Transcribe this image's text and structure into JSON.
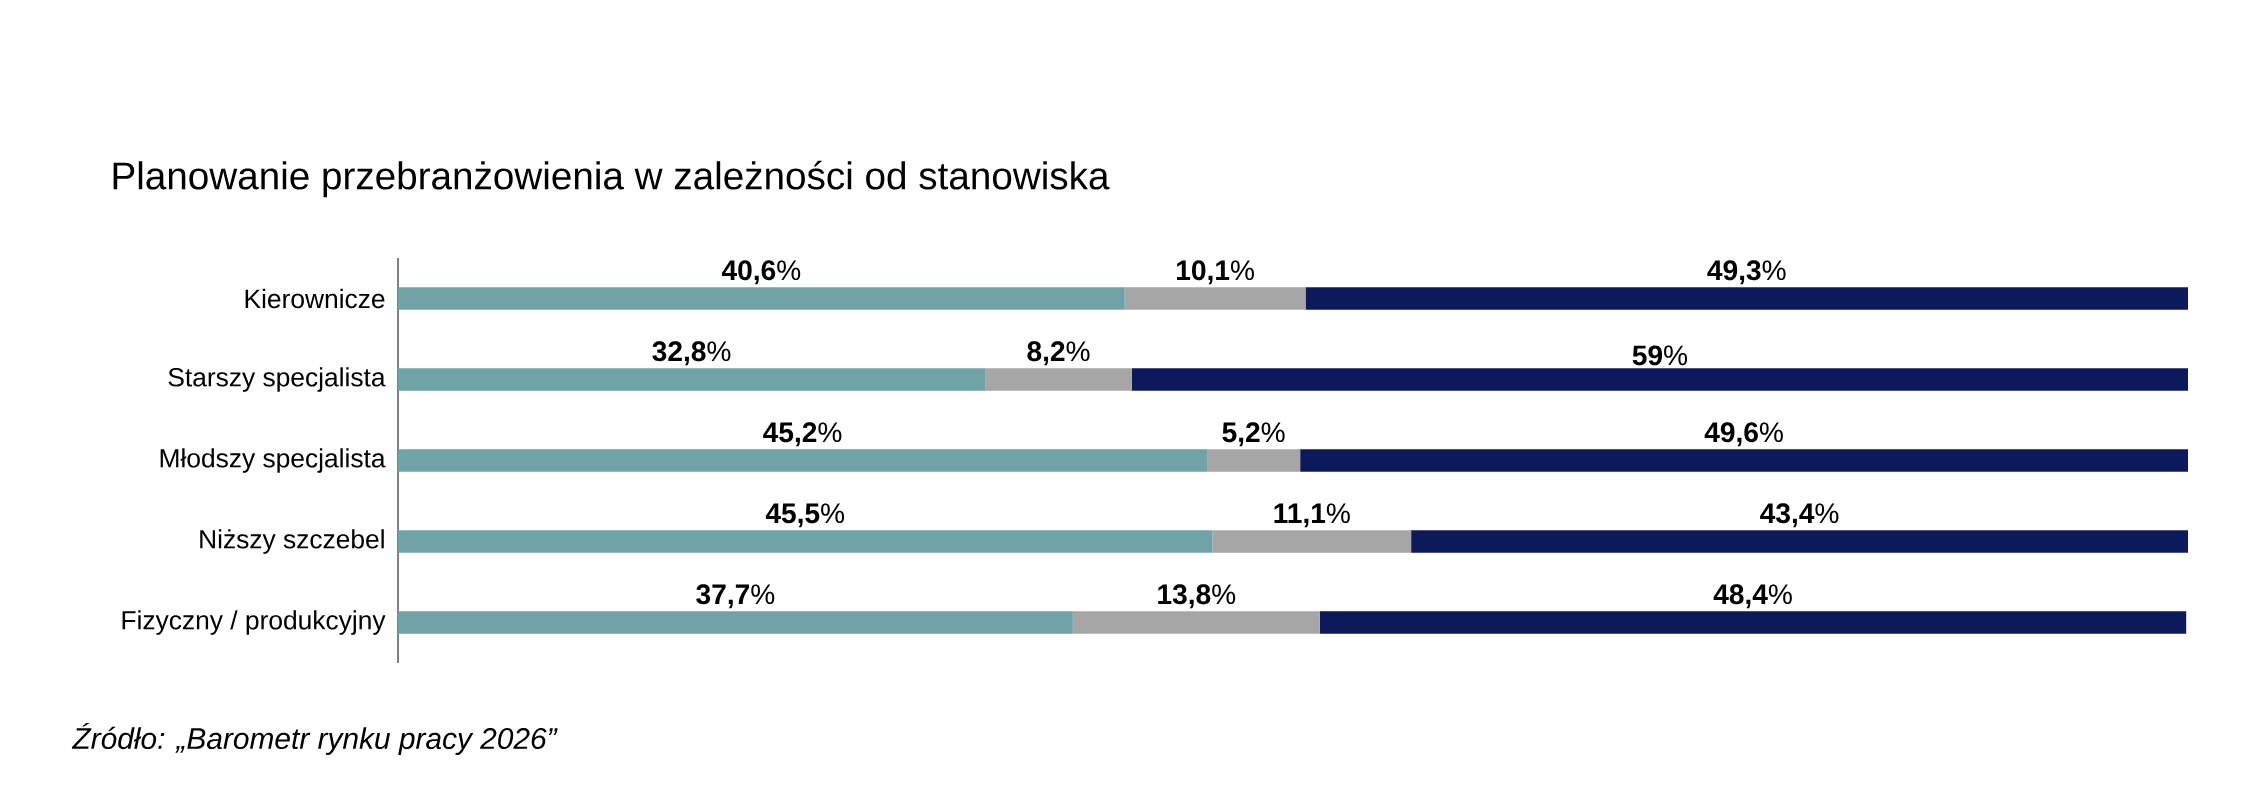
{
  "chart_data": {
    "type": "bar",
    "orientation": "horizontal",
    "stacked": true,
    "title": "Planowanie przebranżowienia w zależności od stanowiska",
    "categories": [
      "Kierownicze",
      "Starszy specjalista",
      "Młodszy specjalista",
      "Niższy szczebel",
      "Fizyczny / produkcyjny"
    ],
    "xlim": [
      0,
      100
    ],
    "tick_labels": "y",
    "series": [
      {
        "color": "#6fa3a6",
        "values": [
          40.6,
          32.8,
          45.2,
          45.5,
          37.7
        ],
        "value_labels": [
          "**40,6**%",
          "**32,8**%",
          "**45,2**%",
          "**45,5**%",
          "**37,7**%"
        ]
      },
      {
        "color": "#a6a6a6",
        "values": [
          10.1,
          8.2,
          5.2,
          11.1,
          13.8
        ],
        "value_labels": [
          "**10,1**%",
          "**8,2**%",
          "**5,2**%",
          "**11,1**%",
          "**13,8**%"
        ]
      },
      {
        "color": "#0c1a5c",
        "values": [
          49.3,
          59,
          49.6,
          43.4,
          48.4
        ],
        "value_labels": [
          "**49,3**%",
          "**59**%",
          "**49,6**%",
          "**43,4**%",
          "**48,4**%"
        ]
      }
    ],
    "annotations": [
      "*Źródło: „Barometr rynku pracy 2026”*"
    ]
  }
}
